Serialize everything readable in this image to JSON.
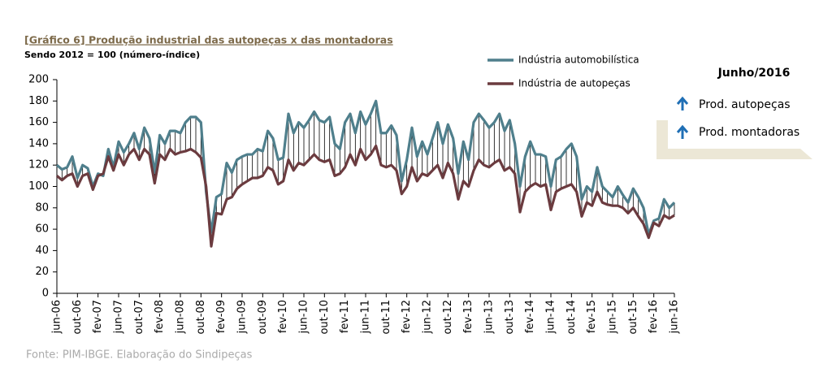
{
  "chart_data": {
    "type": "line",
    "title": "[Gráfico 6] Produção industrial das autopeças x das montadoras",
    "subtitle": "Sendo 2012 = 100 (número-índice)",
    "source": "Fonte: PIM-IBGE. Elaboração do Sindipeças",
    "panel_title": "Junho/2016",
    "panel_items": [
      "Prod. autopeças",
      "Prod. montadoras"
    ],
    "categories": [
      "jun-06",
      null,
      null,
      null,
      "out-06",
      null,
      null,
      null,
      "fev-07",
      null,
      null,
      null,
      "jun-07",
      null,
      null,
      null,
      "out-07",
      null,
      null,
      null,
      "fev-08",
      null,
      null,
      null,
      "jun-08",
      null,
      null,
      null,
      "out-08",
      null,
      null,
      null,
      "fev-09",
      null,
      null,
      null,
      "jun-09",
      null,
      null,
      null,
      "out-09",
      null,
      null,
      null,
      "fev-10",
      null,
      null,
      null,
      "jun-10",
      null,
      null,
      null,
      "out-10",
      null,
      null,
      null,
      "fev-11",
      null,
      null,
      null,
      "jun-11",
      null,
      null,
      null,
      "out-11",
      null,
      null,
      null,
      "fev-12",
      null,
      null,
      null,
      "jun-12",
      null,
      null,
      null,
      "out-12",
      null,
      null,
      null,
      "fev-13",
      null,
      null,
      null,
      "jun-13",
      null,
      null,
      null,
      "out-13",
      null,
      null,
      null,
      "fev-14",
      null,
      null,
      null,
      "jun-14",
      null,
      null,
      null,
      "out-14",
      null,
      null,
      null,
      "fev-15",
      null,
      null,
      null,
      "jun-15",
      null,
      null,
      null,
      "out-15",
      null,
      null,
      null,
      "fev-16",
      null,
      null,
      null,
      "jun-16"
    ],
    "series": [
      {
        "name": "Indústria automobilística",
        "color": "#4f7f8c",
        "values": [
          120,
          116,
          118,
          128,
          108,
          120,
          117,
          100,
          112,
          110,
          135,
          118,
          142,
          132,
          140,
          150,
          135,
          155,
          145,
          113,
          148,
          140,
          152,
          152,
          150,
          160,
          165,
          165,
          160,
          95,
          57,
          90,
          93,
          122,
          113,
          125,
          128,
          130,
          130,
          135,
          133,
          152,
          145,
          125,
          127,
          168,
          150,
          160,
          155,
          162,
          170,
          162,
          160,
          165,
          140,
          135,
          160,
          168,
          150,
          170,
          158,
          168,
          180,
          150,
          150,
          157,
          148,
          105,
          125,
          155,
          128,
          142,
          130,
          145,
          160,
          140,
          158,
          145,
          112,
          142,
          125,
          160,
          168,
          162,
          155,
          160,
          168,
          152,
          162,
          140,
          100,
          128,
          142,
          130,
          130,
          128,
          100,
          125,
          128,
          135,
          140,
          128,
          88,
          100,
          95,
          118,
          100,
          95,
          90,
          100,
          92,
          85,
          98,
          90,
          80,
          55,
          68,
          70,
          88,
          80,
          85
        ]
      },
      {
        "name": "Indústria de autopeças",
        "color": "#6b3b3f",
        "values": [
          110,
          106,
          110,
          112,
          100,
          110,
          112,
          97,
          110,
          112,
          128,
          115,
          130,
          120,
          130,
          135,
          125,
          135,
          130,
          103,
          130,
          125,
          135,
          130,
          132,
          133,
          135,
          132,
          127,
          100,
          44,
          75,
          74,
          88,
          90,
          98,
          102,
          105,
          108,
          108,
          110,
          118,
          115,
          102,
          105,
          125,
          115,
          122,
          120,
          125,
          130,
          125,
          123,
          125,
          110,
          112,
          118,
          130,
          120,
          135,
          125,
          130,
          138,
          120,
          118,
          120,
          115,
          93,
          100,
          118,
          105,
          112,
          110,
          115,
          120,
          108,
          122,
          112,
          88,
          105,
          100,
          115,
          125,
          120,
          118,
          122,
          125,
          115,
          118,
          112,
          76,
          95,
          100,
          103,
          100,
          102,
          78,
          95,
          98,
          100,
          102,
          95,
          72,
          85,
          82,
          95,
          85,
          83,
          82,
          82,
          80,
          75,
          80,
          72,
          65,
          52,
          66,
          63,
          73,
          70,
          73
        ]
      }
    ],
    "ylim": [
      0,
      200
    ],
    "yticks": [
      0,
      20,
      40,
      60,
      80,
      100,
      120,
      140,
      160,
      180,
      200
    ],
    "grid": false,
    "legend": "top"
  }
}
